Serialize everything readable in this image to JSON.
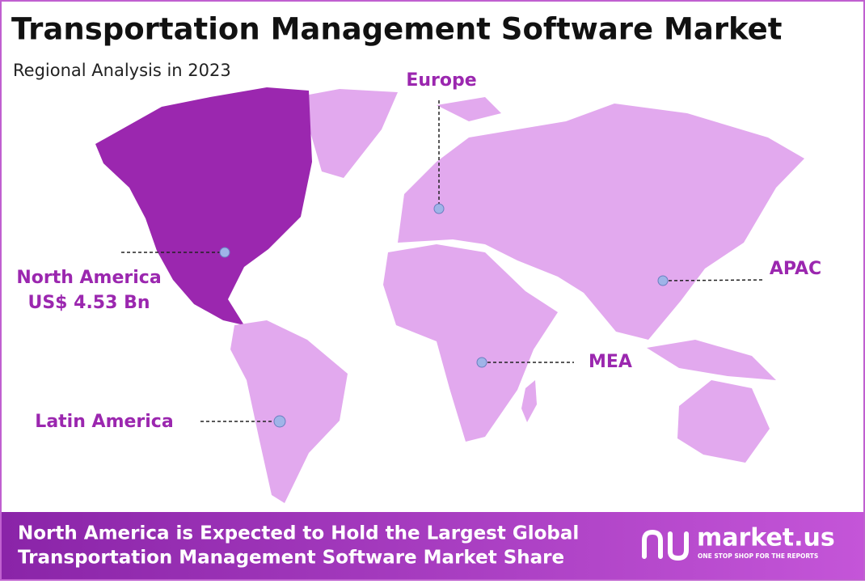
{
  "header": {
    "title": "Transportation Management Software Market",
    "subtitle": "Regional Analysis in 2023"
  },
  "regions": [
    {
      "label": "North America",
      "value": "US$ 4.53 Bn"
    },
    {
      "label": "Europe"
    },
    {
      "label": "APAC"
    },
    {
      "label": "MEA"
    },
    {
      "label": "Latin America"
    }
  ],
  "footer": {
    "lines": [
      "North America is Expected to Hold the Largest Global",
      "Transportation Management Software Market Share"
    ]
  },
  "logo": {
    "name": "market.us",
    "tagline": "ONE STOP SHOP FOR THE REPORTS"
  }
}
